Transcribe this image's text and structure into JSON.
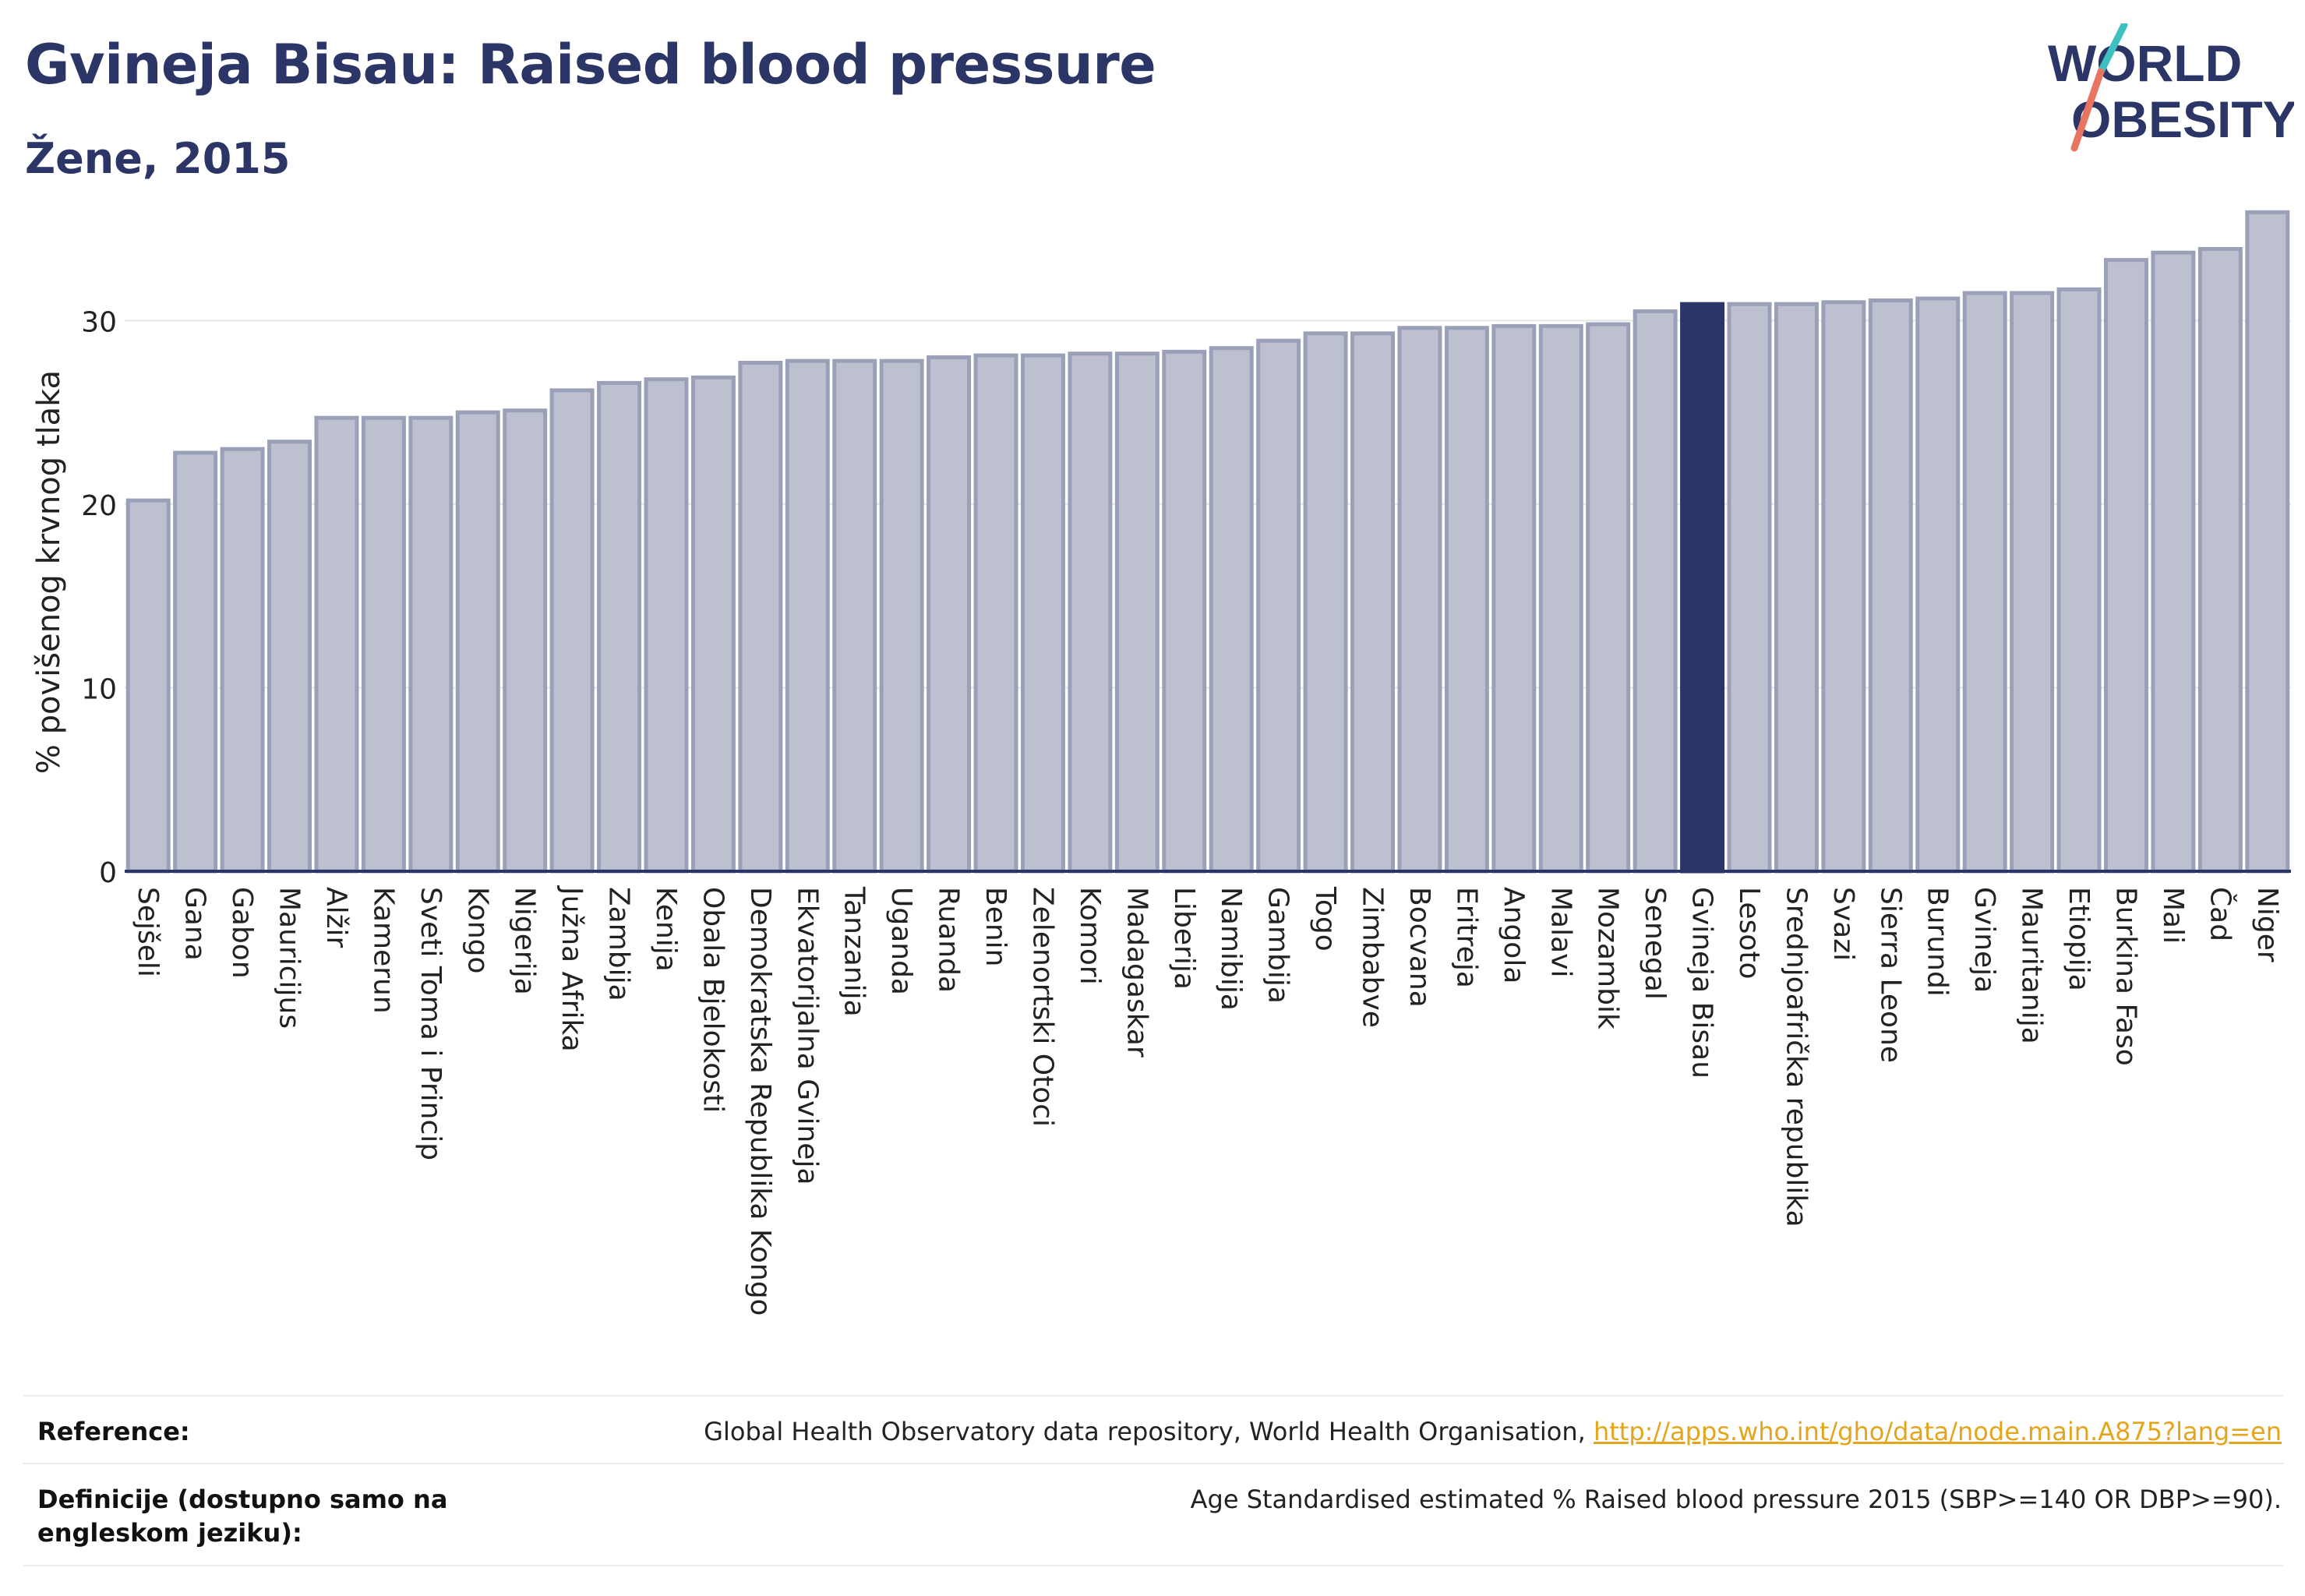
{
  "header": {
    "title": "Gvineja Bisau: Raised blood pressure",
    "subtitle": "Žene, 2015"
  },
  "logo": {
    "line1": "WORLD",
    "line2": "OBESITY"
  },
  "colors": {
    "bar_default": "#bcc0cf",
    "bar_default_stroke": "#9aa0b8",
    "bar_highlight": "#2b3566",
    "title": "#2b3566",
    "logo_teal": "#3fc0c0",
    "logo_coral": "#e87561",
    "link": "#e4a51b"
  },
  "chart_data": {
    "type": "bar",
    "title": "",
    "xlabel": "",
    "ylabel": "% povišenog krvnog tlaka",
    "ylim": [
      0,
      36
    ],
    "yticks": [
      0,
      10,
      20,
      30
    ],
    "grid": true,
    "highlight": "Gvineja Bisau",
    "categories": [
      "Sejšeli",
      "Gana",
      "Gabon",
      "Mauricijus",
      "Alžir",
      "Kamerun",
      "Sveti Toma i Princip",
      "Kongo",
      "Nigerija",
      "Južna Afrika",
      "Zambija",
      "Kenija",
      "Obala Bjelokosti",
      "Demokratska Republika Kongo",
      "Ekvatorijalna Gvineja",
      "Tanzanija",
      "Uganda",
      "Ruanda",
      "Benin",
      "Zelenortski Otoci",
      "Komori",
      "Madagaskar",
      "Liberija",
      "Namibija",
      "Gambija",
      "Togo",
      "Zimbabve",
      "Bocvana",
      "Eritreja",
      "Angola",
      "Malavi",
      "Mozambik",
      "Senegal",
      "Gvineja Bisau",
      "Lesoto",
      "Srednjoafrička republika",
      "Svazi",
      "Sierra Leone",
      "Burundi",
      "Gvineja",
      "Mauritanija",
      "Etiopija",
      "Burkina Faso",
      "Mali",
      "Čad",
      "Niger"
    ],
    "values": [
      20.2,
      22.8,
      23.0,
      23.4,
      24.7,
      24.7,
      24.7,
      25.0,
      25.1,
      26.2,
      26.6,
      26.8,
      26.9,
      27.7,
      27.8,
      27.8,
      27.8,
      28.0,
      28.1,
      28.1,
      28.2,
      28.2,
      28.3,
      28.5,
      28.9,
      29.3,
      29.3,
      29.6,
      29.6,
      29.7,
      29.7,
      29.8,
      30.5,
      30.9,
      30.9,
      30.9,
      31.0,
      31.1,
      31.2,
      31.5,
      31.5,
      31.7,
      33.3,
      33.7,
      33.9,
      35.9
    ]
  },
  "reference": {
    "rows": [
      {
        "label": "Reference:",
        "text": "Global Health Observatory data repository, World Health Organisation, ",
        "link": "http://apps.who.int/gho/data/node.main.A875?lang=en"
      },
      {
        "label": "Definicije (dostupno samo na engleskom jeziku):",
        "text": "Age Standardised estimated % Raised blood pressure 2015 (SBP>=140 OR DBP>=90).",
        "link": ""
      }
    ]
  }
}
